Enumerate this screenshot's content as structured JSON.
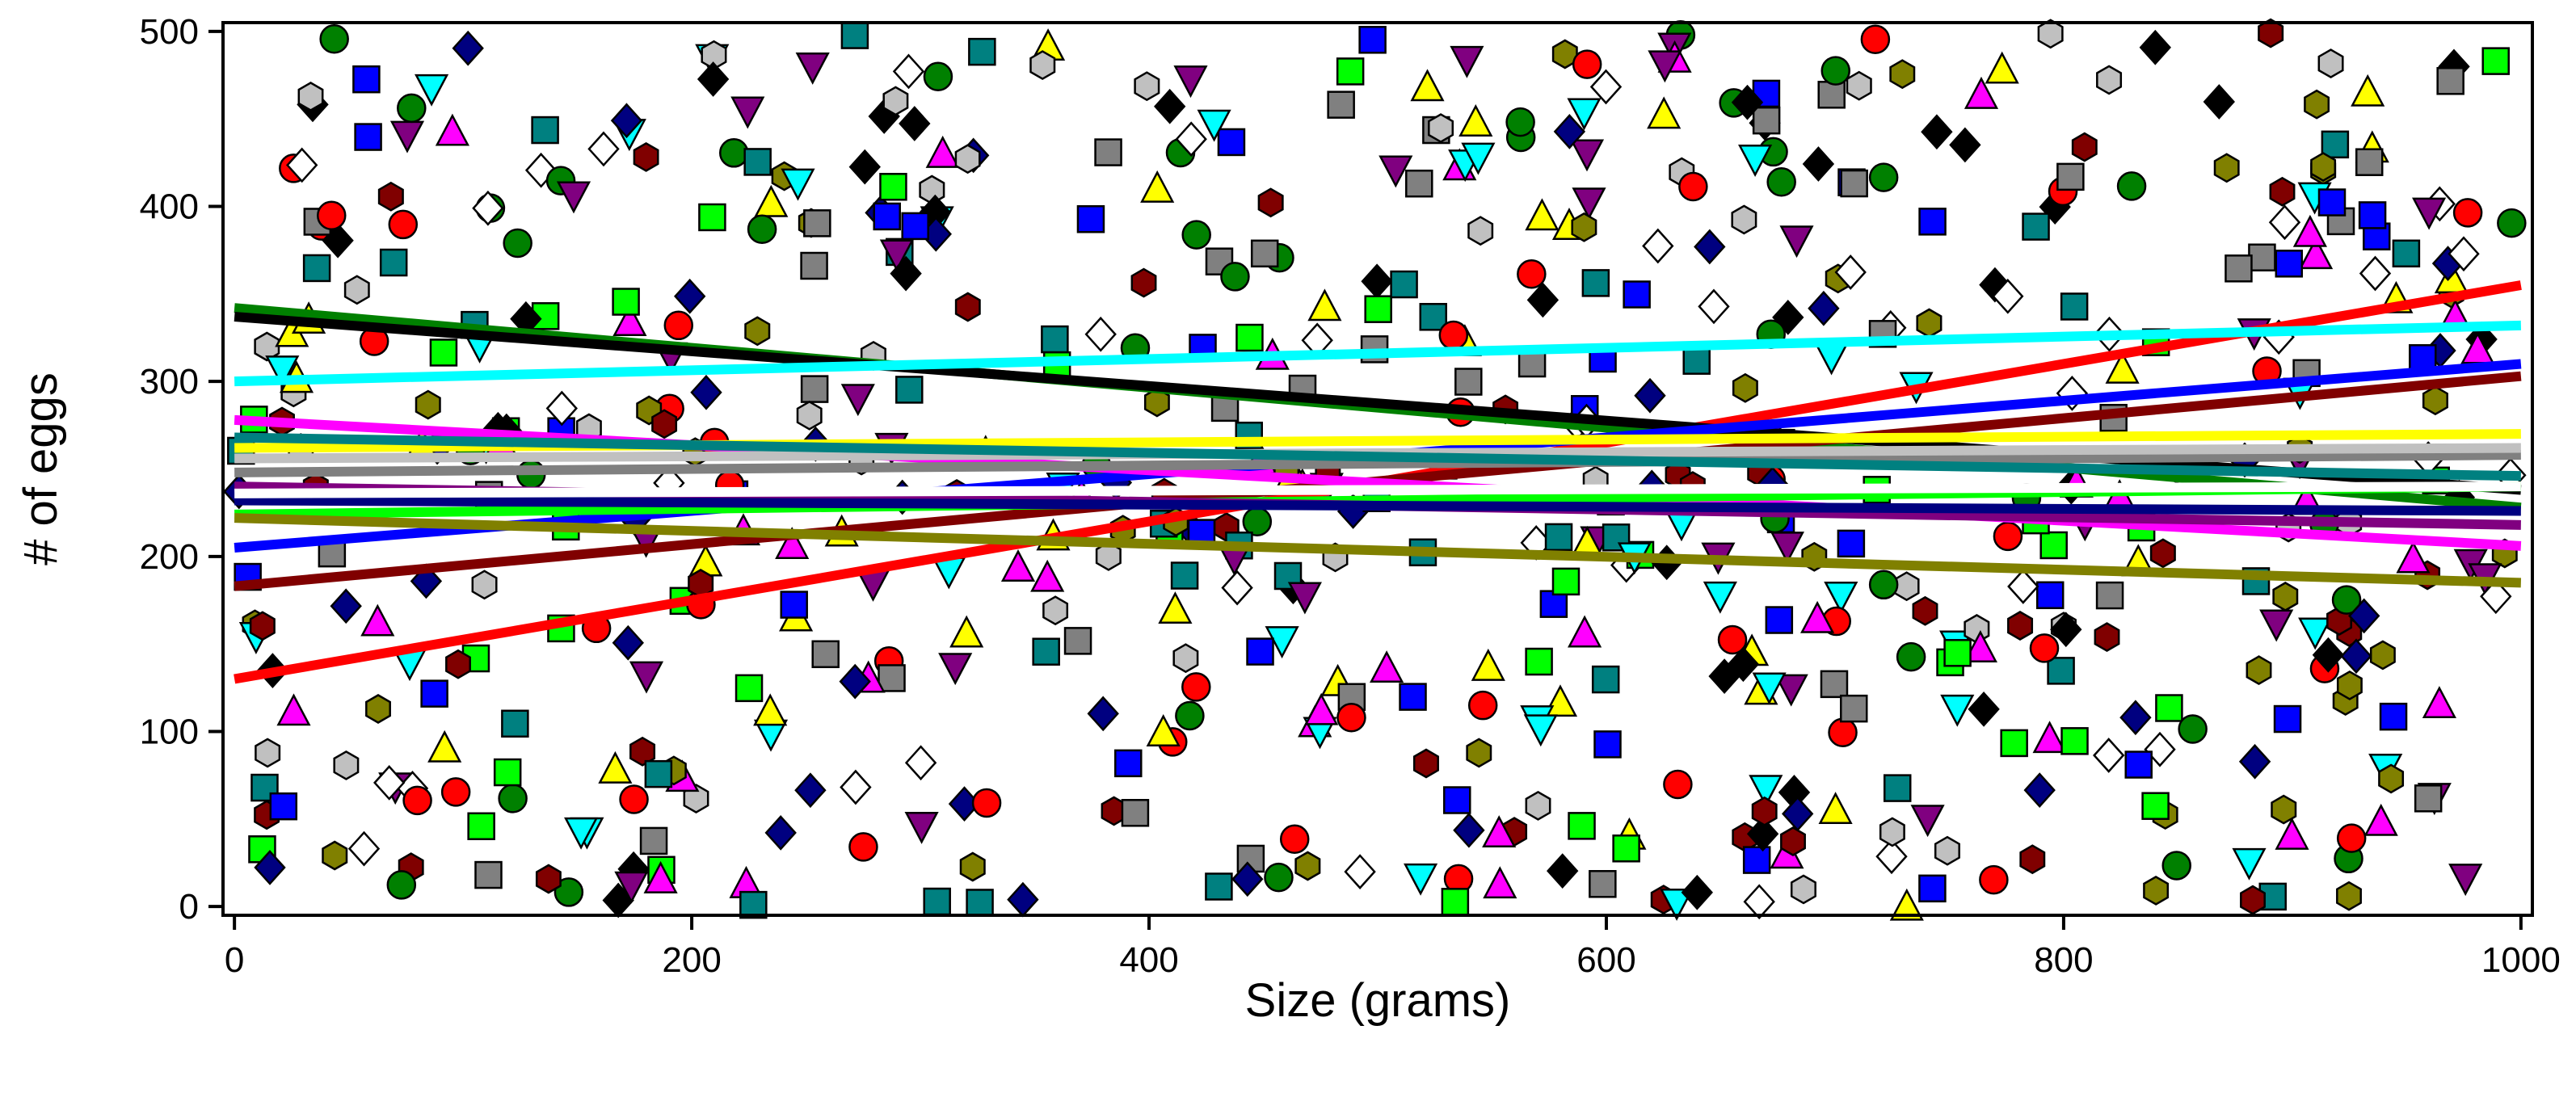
{
  "chart_data": {
    "type": "scatter",
    "title": "",
    "xlabel": "Size (grams)",
    "ylabel": "# of eggs",
    "xlim": [
      -5,
      1005
    ],
    "ylim": [
      -5,
      505
    ],
    "xticks": [
      0,
      200,
      400,
      600,
      800,
      1000
    ],
    "yticks": [
      0,
      100,
      200,
      300,
      400,
      500
    ],
    "xtick_labels": [
      "0",
      "200",
      "400",
      "600",
      "800",
      "1000"
    ],
    "ytick_labels": [
      "0",
      "100",
      "200",
      "300",
      "400",
      "500"
    ],
    "grid": false,
    "legend": "none",
    "points_per_series": 42,
    "series": [
      {
        "color": "#ff0000",
        "marker": "circle",
        "fit": {
          "x0": 0,
          "y0": 130,
          "x1": 1000,
          "y1": 355
        }
      },
      {
        "color": "#008000",
        "marker": "circle",
        "fit": {
          "x0": 0,
          "y0": 342,
          "x1": 1000,
          "y1": 228
        }
      },
      {
        "color": "#000000",
        "marker": "diamond",
        "fit": {
          "x0": 0,
          "y0": 337,
          "x1": 1000,
          "y1": 238
        }
      },
      {
        "color": "#00ffff",
        "marker": "triangle-down",
        "fit": {
          "x0": 0,
          "y0": 300,
          "x1": 1000,
          "y1": 332
        }
      },
      {
        "color": "#0000ff",
        "marker": "square",
        "fit": {
          "x0": 0,
          "y0": 205,
          "x1": 1000,
          "y1": 310
        }
      },
      {
        "color": "#800000",
        "marker": "hexagon",
        "fit": {
          "x0": 0,
          "y0": 183,
          "x1": 1000,
          "y1": 303
        }
      },
      {
        "color": "#ff00ff",
        "marker": "triangle-up",
        "fit": {
          "x0": 0,
          "y0": 278,
          "x1": 1000,
          "y1": 206
        }
      },
      {
        "color": "#ffff00",
        "marker": "triangle-up",
        "fit": {
          "x0": 0,
          "y0": 262,
          "x1": 1000,
          "y1": 270
        }
      },
      {
        "color": "#00ff00",
        "marker": "square",
        "fit": {
          "x0": 0,
          "y0": 224,
          "x1": 1000,
          "y1": 240
        }
      },
      {
        "color": "#808000",
        "marker": "hexagon",
        "fit": {
          "x0": 0,
          "y0": 222,
          "x1": 1000,
          "y1": 185
        }
      },
      {
        "color": "#808080",
        "marker": "square",
        "fit": {
          "x0": 0,
          "y0": 248,
          "x1": 1000,
          "y1": 258
        }
      },
      {
        "color": "#c0c0c0",
        "marker": "hexagon",
        "fit": {
          "x0": 0,
          "y0": 256,
          "x1": 1000,
          "y1": 262
        }
      },
      {
        "color": "#800080",
        "marker": "triangle-down",
        "fit": {
          "x0": 0,
          "y0": 240,
          "x1": 1000,
          "y1": 218
        }
      },
      {
        "color": "#008080",
        "marker": "square",
        "fit": {
          "x0": 0,
          "y0": 268,
          "x1": 1000,
          "y1": 246
        }
      },
      {
        "color": "#000080",
        "marker": "diamond",
        "fit": {
          "x0": 0,
          "y0": 232,
          "x1": 1000,
          "y1": 226
        }
      },
      {
        "color": "#ffffff",
        "marker": "diamond",
        "fit": {
          "x0": 0,
          "y0": 236,
          "x1": 1000,
          "y1": 240
        }
      }
    ]
  }
}
